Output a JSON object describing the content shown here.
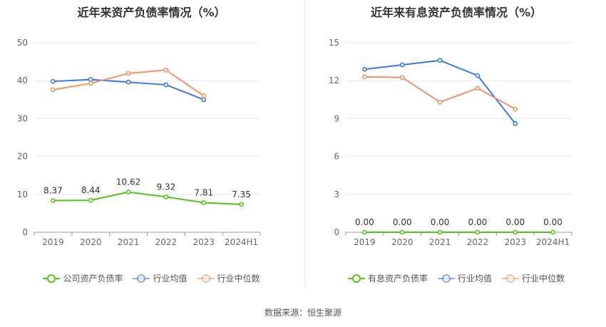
{
  "source": "数据来源：恒生聚源",
  "chart_data": [
    {
      "type": "line",
      "title": "近年来资产负债率情况（%）",
      "categories": [
        "2019",
        "2020",
        "2021",
        "2022",
        "2023",
        "2024H1"
      ],
      "ylim": [
        0,
        50
      ],
      "yticks": [
        0,
        10,
        20,
        30,
        40,
        50
      ],
      "grid": true,
      "legend_placement": "bottom",
      "series": [
        {
          "name": "公司资产负债率",
          "color": "#52c41a",
          "values": [
            8.37,
            8.44,
            10.62,
            9.32,
            7.81,
            7.35
          ],
          "labels": [
            "8.37",
            "8.44",
            "10.62",
            "9.32",
            "7.81",
            "7.35"
          ]
        },
        {
          "name": "行业均值",
          "color": "#3b78e7",
          "values": [
            39.8,
            40.3,
            39.6,
            38.9,
            35.0,
            null
          ]
        },
        {
          "name": "行业中位数",
          "color": "#f39165",
          "values": [
            37.6,
            39.3,
            41.9,
            42.8,
            36.0,
            null
          ]
        }
      ]
    },
    {
      "type": "line",
      "title": "近年来有息资产负债率情况（%）",
      "categories": [
        "2019",
        "2020",
        "2021",
        "2022",
        "2023",
        "2024H1"
      ],
      "ylim": [
        0,
        15
      ],
      "yticks": [
        0,
        3,
        6,
        9,
        12,
        15
      ],
      "grid": true,
      "legend_placement": "bottom",
      "series": [
        {
          "name": "有息资产负债率",
          "color": "#52c41a",
          "values": [
            0,
            0,
            0,
            0,
            0,
            0
          ],
          "labels": [
            "0.00",
            "0.00",
            "0.00",
            "0.00",
            "0.00",
            "0.00"
          ]
        },
        {
          "name": "行业均值",
          "color": "#3b78e7",
          "values": [
            12.9,
            13.25,
            13.6,
            12.4,
            8.6,
            null
          ]
        },
        {
          "name": "行业中位数",
          "color": "#f39165",
          "values": [
            12.3,
            12.25,
            10.3,
            11.4,
            9.75,
            null
          ]
        }
      ]
    }
  ]
}
